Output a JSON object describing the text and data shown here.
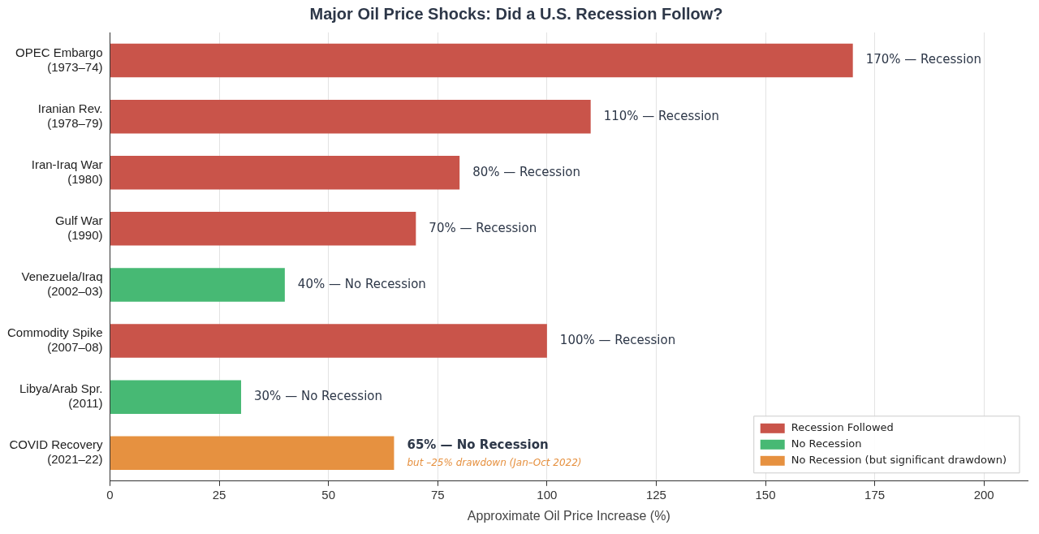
{
  "chart_data": {
    "type": "bar",
    "orientation": "horizontal",
    "title": "Major Oil Price Shocks: Did a U.S. Recession Follow?",
    "xlabel": "Approximate Oil Price Increase (%)",
    "categories": [
      "OPEC Embargo\n(1973–74)",
      "Iranian Rev.\n(1978–79)",
      "Iran-Iraq War\n(1980)",
      "Gulf War\n(1990)",
      "Venezuela/Iraq\n(2002–03)",
      "Commodity Spike\n(2007–08)",
      "Libya/Arab Spr.\n(2011)",
      "COVID Recovery\n(2021–22)"
    ],
    "series": [
      {
        "name": "Recession Followed",
        "color": "#c9544a",
        "values": [
          170,
          110,
          80,
          70,
          null,
          100,
          null,
          null
        ],
        "value_labels": [
          "170% — Recession",
          "110% — Recession",
          "80% — Recession",
          "70% — Recession",
          null,
          "100% — Recession",
          null,
          null
        ]
      },
      {
        "name": "No Recession",
        "color": "#47b974",
        "values": [
          null,
          null,
          null,
          null,
          40,
          null,
          30,
          null
        ],
        "value_labels": [
          null,
          null,
          null,
          null,
          "40% — No Recession",
          null,
          "30% — No Recession",
          null
        ]
      },
      {
        "name": "No Recession (but significant drawdown)",
        "color": "#e69140",
        "values": [
          null,
          null,
          null,
          null,
          null,
          null,
          null,
          65
        ],
        "value_labels": [
          null,
          null,
          null,
          null,
          null,
          null,
          null,
          "65% — No Recession"
        ]
      }
    ],
    "annotations": [
      {
        "text": "but –25% drawdown (Jan–Oct 2022)",
        "x": 65,
        "y": "COVID Recovery\n(2021–22)"
      }
    ],
    "xlim": [
      0,
      210
    ],
    "xticks": [
      0,
      25,
      50,
      75,
      100,
      125,
      150,
      175,
      200
    ],
    "grid": "x",
    "legend": "bottom right"
  }
}
